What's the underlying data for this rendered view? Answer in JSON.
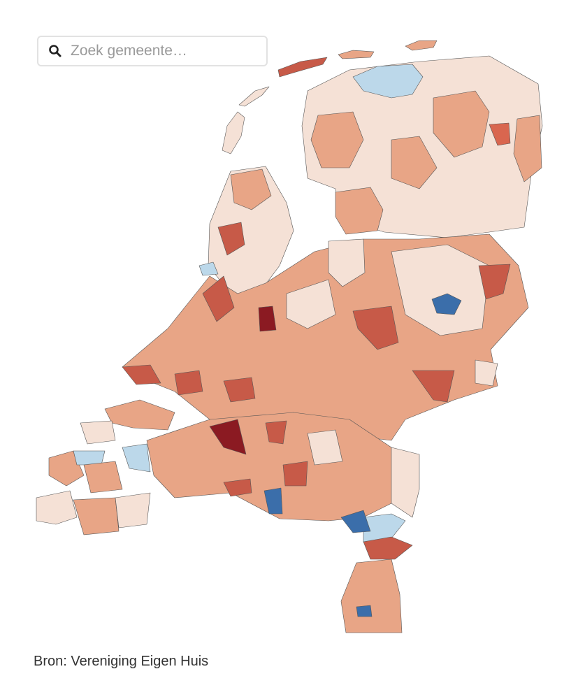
{
  "search": {
    "placeholder": "Zoek gemeente…"
  },
  "source": "Bron: Vereniging Eigen Huis"
}
